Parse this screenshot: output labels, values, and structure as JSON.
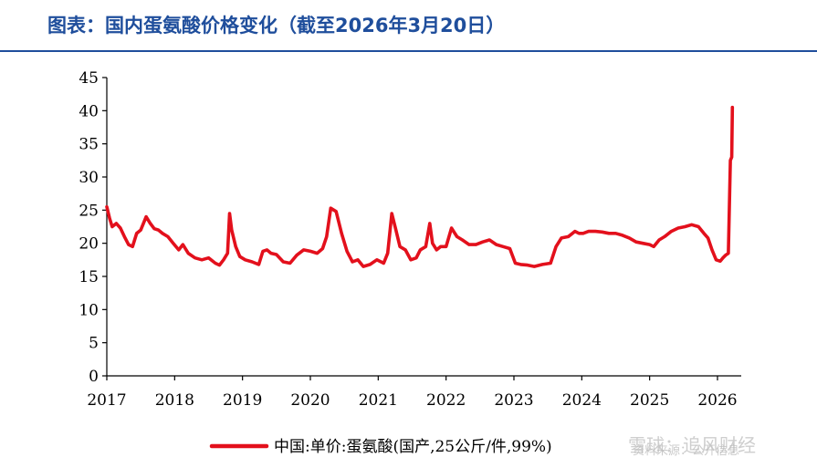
{
  "title": "图表：国内蛋氨酸价格变化（截至2026年3月20日）",
  "watermark": {
    "source": "资料来源：公开信息",
    "brand": "雪球：追风财经"
  },
  "colors": {
    "title": "#1f4e9c",
    "series": "#e3101c",
    "axis": "#000000"
  },
  "chart_data": {
    "type": "line",
    "title": "",
    "xlabel": "",
    "ylabel": "",
    "ylim": [
      0,
      45
    ],
    "yticks": [
      0,
      5,
      10,
      15,
      20,
      25,
      30,
      35,
      40,
      45
    ],
    "xlim": [
      2017,
      2026.35
    ],
    "xticks": [
      2017,
      2018,
      2019,
      2020,
      2021,
      2022,
      2023,
      2024,
      2025,
      2026
    ],
    "grid": false,
    "legend_position": "bottom-center",
    "series": [
      {
        "name": "中国:单价:蛋氨酸(国产,25公斤/件,99%)",
        "color": "#e3101c",
        "x": [
          2017.0,
          2017.04,
          2017.08,
          2017.14,
          2017.2,
          2017.26,
          2017.32,
          2017.38,
          2017.44,
          2017.5,
          2017.58,
          2017.64,
          2017.7,
          2017.76,
          2017.82,
          2017.9,
          2017.98,
          2018.06,
          2018.12,
          2018.2,
          2018.3,
          2018.4,
          2018.5,
          2018.6,
          2018.66,
          2018.72,
          2018.78,
          2018.81,
          2018.84,
          2018.9,
          2018.96,
          2019.04,
          2019.14,
          2019.24,
          2019.3,
          2019.36,
          2019.42,
          2019.5,
          2019.6,
          2019.7,
          2019.8,
          2019.9,
          2020.0,
          2020.1,
          2020.18,
          2020.24,
          2020.3,
          2020.38,
          2020.46,
          2020.54,
          2020.62,
          2020.7,
          2020.78,
          2020.88,
          2020.98,
          2021.08,
          2021.14,
          2021.2,
          2021.26,
          2021.32,
          2021.4,
          2021.48,
          2021.56,
          2021.62,
          2021.7,
          2021.76,
          2021.8,
          2021.86,
          2021.92,
          2022.0,
          2022.08,
          2022.16,
          2022.24,
          2022.34,
          2022.44,
          2022.54,
          2022.64,
          2022.74,
          2022.84,
          2022.94,
          2023.02,
          2023.1,
          2023.2,
          2023.3,
          2023.42,
          2023.54,
          2023.62,
          2023.7,
          2023.8,
          2023.9,
          2023.96,
          2024.02,
          2024.1,
          2024.2,
          2024.3,
          2024.4,
          2024.5,
          2024.6,
          2024.7,
          2024.8,
          2024.9,
          2025.0,
          2025.06,
          2025.14,
          2025.22,
          2025.32,
          2025.42,
          2025.52,
          2025.62,
          2025.72,
          2025.8,
          2025.86,
          2025.92,
          2025.98,
          2026.04,
          2026.08,
          2026.12,
          2026.16,
          2026.19,
          2026.21,
          2026.22
        ],
        "values": [
          25.5,
          23.8,
          22.5,
          23.0,
          22.3,
          21.0,
          19.8,
          19.5,
          21.5,
          22.0,
          24.0,
          23.0,
          22.2,
          22.0,
          21.5,
          21.0,
          20.0,
          19.0,
          19.8,
          18.5,
          17.8,
          17.5,
          17.8,
          17.0,
          16.7,
          17.5,
          18.5,
          24.5,
          22.0,
          19.5,
          18.0,
          17.5,
          17.2,
          16.8,
          18.8,
          19.0,
          18.5,
          18.3,
          17.2,
          17.0,
          18.2,
          19.0,
          18.8,
          18.5,
          19.2,
          21.0,
          25.3,
          24.8,
          21.5,
          18.8,
          17.2,
          17.5,
          16.5,
          16.8,
          17.5,
          17.0,
          18.5,
          24.5,
          22.0,
          19.5,
          19.0,
          17.5,
          17.8,
          19.0,
          19.5,
          23.0,
          20.0,
          19.0,
          19.5,
          19.5,
          22.3,
          21.0,
          20.5,
          19.8,
          19.8,
          20.2,
          20.5,
          19.8,
          19.5,
          19.2,
          17.0,
          16.8,
          16.7,
          16.5,
          16.8,
          17.0,
          19.5,
          20.8,
          21.0,
          21.8,
          21.5,
          21.5,
          21.8,
          21.8,
          21.7,
          21.5,
          21.5,
          21.2,
          20.8,
          20.2,
          20.0,
          19.8,
          19.5,
          20.5,
          21.0,
          21.8,
          22.3,
          22.5,
          22.8,
          22.5,
          21.5,
          20.8,
          19.0,
          17.5,
          17.3,
          17.8,
          18.2,
          18.5,
          32.5,
          33.0,
          40.5
        ]
      }
    ]
  }
}
